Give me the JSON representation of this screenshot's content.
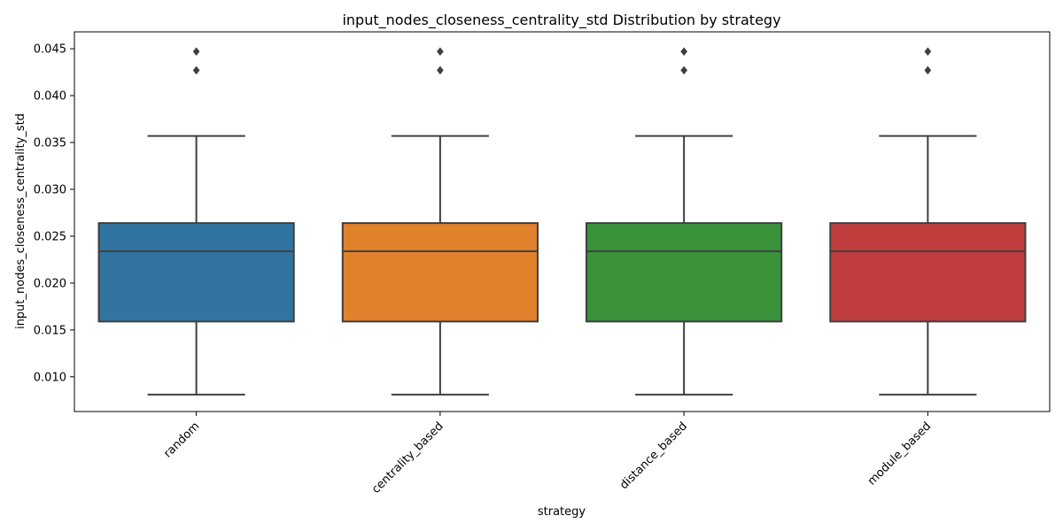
{
  "chart_data": {
    "type": "box",
    "title": "input_nodes_closeness_centrality_std Distribution by strategy",
    "xlabel": "strategy",
    "ylabel": "input_nodes_closeness_centrality_std",
    "categories": [
      "random",
      "centrality_based",
      "distance_based",
      "module_based"
    ],
    "colors": [
      "#3274a1",
      "#e1812c",
      "#3a923a",
      "#c03d3e"
    ],
    "ylim": [
      0.0063,
      0.0468
    ],
    "yticks": [
      0.01,
      0.015,
      0.02,
      0.025,
      0.03,
      0.035,
      0.04,
      0.045
    ],
    "ytick_labels": [
      "0.010",
      "0.015",
      "0.020",
      "0.025",
      "0.030",
      "0.035",
      "0.040",
      "0.045"
    ],
    "boxes": [
      {
        "whisker_low": 0.0081,
        "q1": 0.0159,
        "median": 0.0234,
        "q3": 0.0264,
        "whisker_high": 0.0357,
        "outliers": [
          0.0427,
          0.0447
        ]
      },
      {
        "whisker_low": 0.0081,
        "q1": 0.0159,
        "median": 0.0234,
        "q3": 0.0264,
        "whisker_high": 0.0357,
        "outliers": [
          0.0427,
          0.0447
        ]
      },
      {
        "whisker_low": 0.0081,
        "q1": 0.0159,
        "median": 0.0234,
        "q3": 0.0264,
        "whisker_high": 0.0357,
        "outliers": [
          0.0427,
          0.0447
        ]
      },
      {
        "whisker_low": 0.0081,
        "q1": 0.0159,
        "median": 0.0234,
        "q3": 0.0264,
        "whisker_high": 0.0357,
        "outliers": [
          0.0427,
          0.0447
        ]
      }
    ],
    "grid": false,
    "legend": "none"
  }
}
